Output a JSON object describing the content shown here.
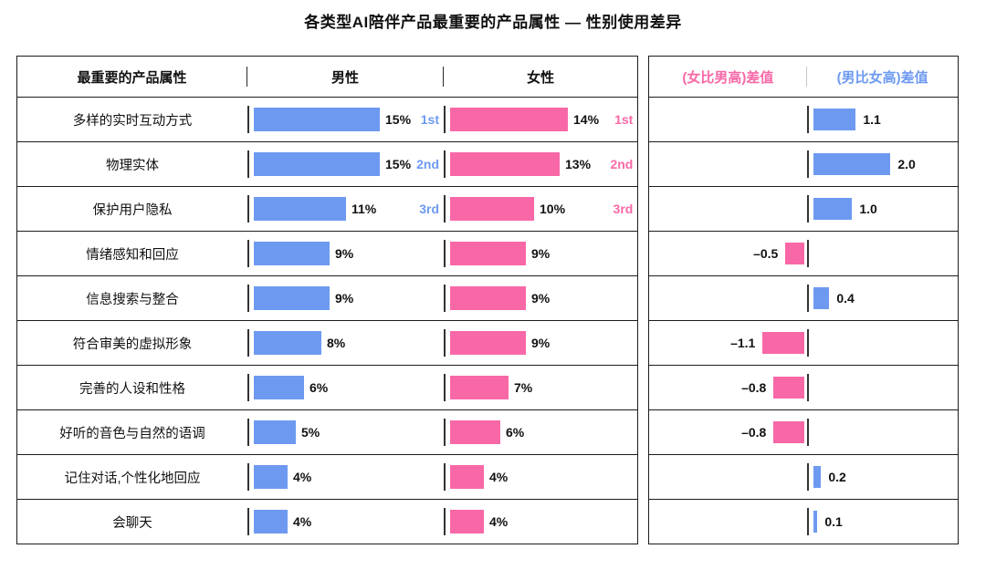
{
  "title": "各类型AI陪伴产品最重要的产品属性 — 性别使用差异",
  "left_header": {
    "attribute": "最重要的产品属性",
    "male": "男性",
    "female": "女性"
  },
  "right_header": {
    "female_higher": "(女比男高)差值",
    "male_higher": "(男比女高)差值"
  },
  "colors": {
    "male_blue": "#6d9af0",
    "female_pink": "#f868a7"
  },
  "chart_data": {
    "type": "bar",
    "title": "各类型AI陪伴产品最重要的产品属性 — 性别使用差异",
    "categories": [
      "多样的实时互动方式",
      "物理实体",
      "保护用户隐私",
      "情绪感知和回应",
      "信息搜索与整合",
      "符合审美的虚拟形象",
      "完善的人设和性格",
      "好听的音色与自然的语调",
      "记住对话,个性化地回应",
      "会聊天"
    ],
    "series": [
      {
        "name": "男性",
        "unit": "%",
        "values": [
          15,
          15,
          11,
          9,
          9,
          8,
          6,
          5,
          4,
          4
        ]
      },
      {
        "name": "女性",
        "unit": "%",
        "values": [
          14,
          13,
          10,
          9,
          9,
          9,
          7,
          6,
          4,
          4
        ]
      },
      {
        "name": "差值(男-女)",
        "values": [
          1.1,
          2.0,
          1.0,
          -0.5,
          0.4,
          -1.1,
          -0.8,
          -0.8,
          0.2,
          0.1
        ]
      }
    ],
    "legend_position": "none",
    "grid": false,
    "rows": [
      {
        "label": "多样的实时互动方式",
        "male_value": 15,
        "male_pct": "15%",
        "male_rank": "1st",
        "female_value": 14,
        "female_pct": "14%",
        "female_rank": "1st",
        "diff": 1.1,
        "diff_label": "1.1"
      },
      {
        "label": "物理实体",
        "male_value": 15,
        "male_pct": "15%",
        "male_rank": "2nd",
        "female_value": 13,
        "female_pct": "13%",
        "female_rank": "2nd",
        "diff": 2.0,
        "diff_label": "2.0"
      },
      {
        "label": "保护用户隐私",
        "male_value": 11,
        "male_pct": "11%",
        "male_rank": "3rd",
        "female_value": 10,
        "female_pct": "10%",
        "female_rank": "3rd",
        "diff": 1.0,
        "diff_label": "1.0"
      },
      {
        "label": "情绪感知和回应",
        "male_value": 9,
        "male_pct": "9%",
        "male_rank": "",
        "female_value": 9,
        "female_pct": "9%",
        "female_rank": "",
        "diff": -0.5,
        "diff_label": "–0.5"
      },
      {
        "label": "信息搜索与整合",
        "male_value": 9,
        "male_pct": "9%",
        "male_rank": "",
        "female_value": 9,
        "female_pct": "9%",
        "female_rank": "",
        "diff": 0.4,
        "diff_label": "0.4"
      },
      {
        "label": "符合审美的虚拟形象",
        "male_value": 8,
        "male_pct": "8%",
        "male_rank": "",
        "female_value": 9,
        "female_pct": "9%",
        "female_rank": "",
        "diff": -1.1,
        "diff_label": "–1.1"
      },
      {
        "label": "完善的人设和性格",
        "male_value": 6,
        "male_pct": "6%",
        "male_rank": "",
        "female_value": 7,
        "female_pct": "7%",
        "female_rank": "",
        "diff": -0.8,
        "diff_label": "–0.8"
      },
      {
        "label": "好听的音色与自然的语调",
        "male_value": 5,
        "male_pct": "5%",
        "male_rank": "",
        "female_value": 6,
        "female_pct": "6%",
        "female_rank": "",
        "diff": -0.8,
        "diff_label": "–0.8"
      },
      {
        "label": "记住对话,个性化地回应",
        "male_value": 4,
        "male_pct": "4%",
        "male_rank": "",
        "female_value": 4,
        "female_pct": "4%",
        "female_rank": "",
        "diff": 0.2,
        "diff_label": "0.2"
      },
      {
        "label": "会聊天",
        "male_value": 4,
        "male_pct": "4%",
        "male_rank": "",
        "female_value": 4,
        "female_pct": "4%",
        "female_rank": "",
        "diff": 0.1,
        "diff_label": "0.1"
      }
    ]
  }
}
